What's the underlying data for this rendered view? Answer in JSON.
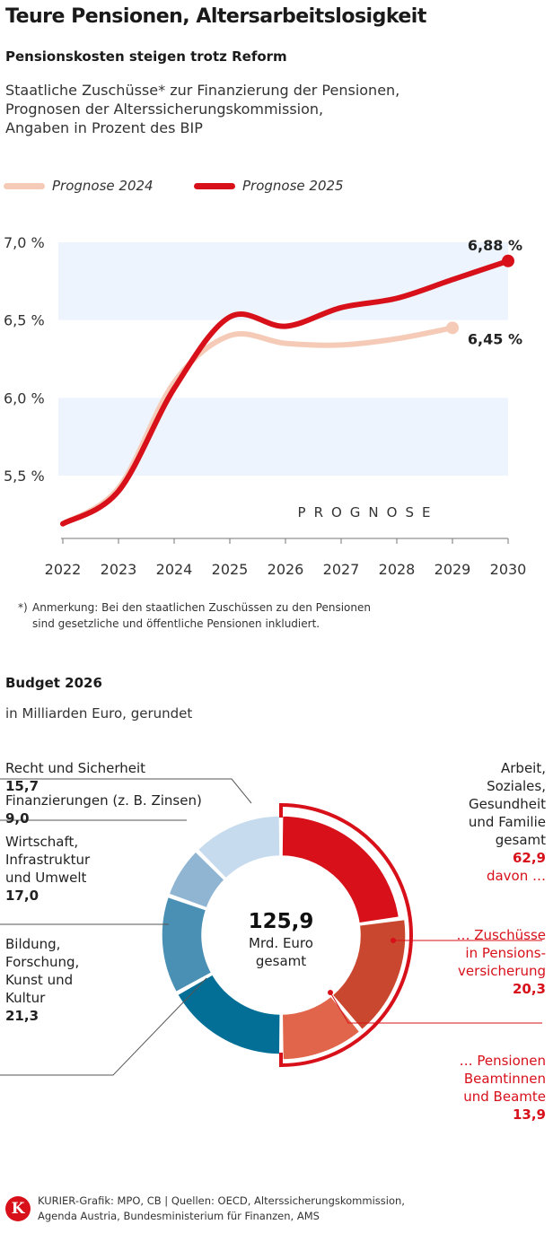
{
  "title": "Teure Pensionen, Altersarbeitslosigkeit",
  "line_section": {
    "subtitle": "Pensionskosten steigen trotz Reform",
    "description": [
      "Staatliche Zuschüsse* zur Finanzierung der Pensionen,",
      "Prognosen der Alterssicherungskommission,",
      "Angaben in Prozent des BIP"
    ],
    "note_mark": "*)",
    "note": [
      "Anmerkung: Bei den staatlichen Zuschüssen zu den Pensionen",
      "sind gesetzliche und öffentliche Pensionen inkludiert."
    ]
  },
  "budget_section": {
    "title": "Budget 2026",
    "subtitle": "in Milliarden Euro, gerundet",
    "center_value": "125,9",
    "center_unit": "Mrd. Euro",
    "center_label": "gesamt"
  },
  "chart_data": [
    {
      "type": "line",
      "x": [
        2022,
        2023,
        2024,
        2025,
        2026,
        2027,
        2028,
        2029,
        2030
      ],
      "xticks": [
        "2022",
        "2023",
        "2024",
        "2025",
        "2026",
        "2027",
        "2028",
        "2029",
        "2030"
      ],
      "yticks": [
        "5,5 %",
        "6,0 %",
        "6,5 %",
        "7,0 %"
      ],
      "ylim": [
        5.15,
        7.0
      ],
      "annotation": "PROGNOSE",
      "series": [
        {
          "name": "Prognose 2024",
          "color": "#f5cbb8",
          "values": [
            5.19,
            5.42,
            6.1,
            6.4,
            6.35,
            6.34,
            6.38,
            6.45,
            null
          ],
          "end_label": "6,45 %"
        },
        {
          "name": "Prognose 2025",
          "color": "#d7101a",
          "values": [
            5.19,
            5.4,
            6.06,
            6.52,
            6.46,
            6.58,
            6.64,
            6.76,
            6.88
          ],
          "end_label": "6,88 %"
        }
      ]
    },
    {
      "type": "pie",
      "total": 125.9,
      "slices": [
        {
          "label": "Arbeit, Soziales, Gesundheit und Familie gesamt (Rest)",
          "value": 28.7,
          "color": "#d7101a"
        },
        {
          "label": "… Zuschüsse in Pensionsversicherung",
          "value": 20.3,
          "color": "#c9472f"
        },
        {
          "label": "… Pensionen Beamtinnen und Beamte",
          "value": 13.9,
          "color": "#e0654b"
        },
        {
          "label": "Bildung, Forschung, Kunst und Kultur",
          "value": 21.3,
          "color": "#036f96"
        },
        {
          "label": "Wirtschaft, Infrastruktur und Umwelt",
          "value": 17.0,
          "color": "#4a8fb4"
        },
        {
          "label": "Finanzierungen (z. B. Zinsen)",
          "value": 9.0,
          "color": "#8fb5d3"
        },
        {
          "label": "Recht und Sicherheit",
          "value": 15.7,
          "color": "#c6dbee"
        }
      ],
      "labels": {
        "recht": {
          "name": "Recht und Sicherheit",
          "value": "15,7"
        },
        "fin": {
          "name": "Finanzierungen (z. B. Zinsen)",
          "value": "9,0"
        },
        "wirt": {
          "lines": [
            "Wirtschaft,",
            "Infrastruktur",
            "und Umwelt"
          ],
          "value": "17,0"
        },
        "bild": {
          "lines": [
            "Bildung,",
            "Forschung,",
            "Kunst und",
            "Kultur"
          ],
          "value": "21,3"
        },
        "arbeit": {
          "lines": [
            "Arbeit,",
            "Soziales,",
            "Gesundheit",
            "und Familie",
            "gesamt"
          ],
          "value": "62,9",
          "suffix": "davon …"
        },
        "zusch": {
          "lines": [
            "… Zuschüsse",
            "in Pensions-",
            "versicherung"
          ],
          "value": "20,3"
        },
        "beamte": {
          "lines": [
            "… Pensionen",
            "Beamtinnen",
            "und Beamte"
          ],
          "value": "13,9"
        }
      }
    }
  ],
  "footer": {
    "logo": "K",
    "lines": [
      "KURIER-Grafik: MPO, CB | Quellen: OECD, Alterssicherungskommission,",
      "Agenda Austria, Bundesministerium für Finanzen, AMS"
    ]
  }
}
